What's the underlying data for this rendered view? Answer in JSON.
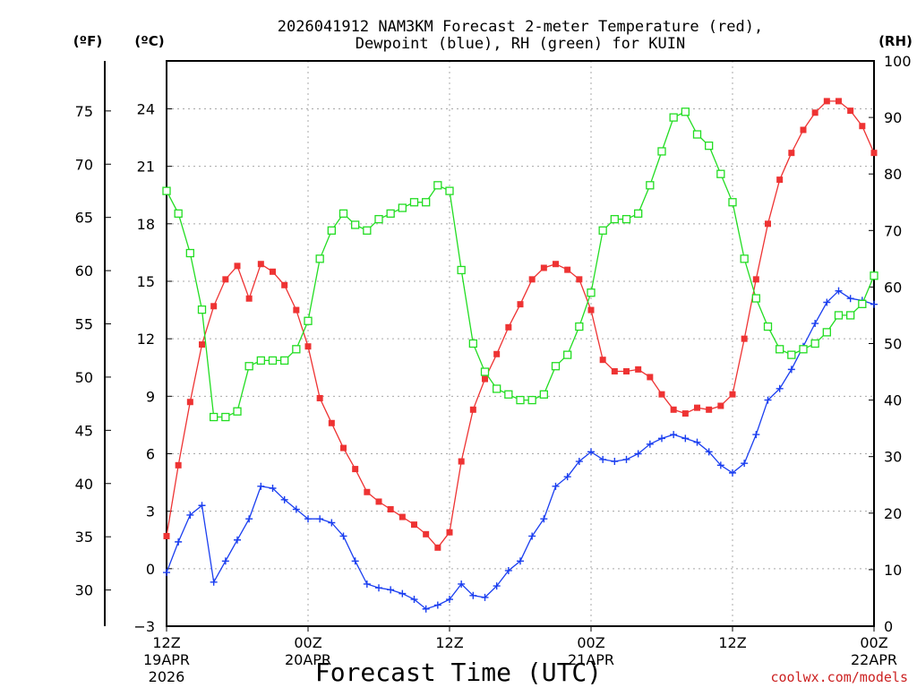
{
  "chart_data": {
    "type": "line",
    "title_line1": "2026041912 NAM3KM Forecast 2-meter Temperature (red),",
    "title_line2": "Dewpoint (blue), RH (green) for KUIN",
    "xlabel": "Forecast Time (UTC)",
    "watermark": "coolwx.com/models",
    "unit_f": "(ºF)",
    "unit_c": "(ºC)",
    "unit_rh": "(RH)",
    "x_range_hours": [
      0,
      60
    ],
    "ylim_c": [
      -3,
      26.5
    ],
    "ylim_f": [
      26.6,
      79.7
    ],
    "ylim_rh": [
      0,
      100
    ],
    "c_ticks": [
      "24",
      "21",
      "18",
      "15",
      "12",
      "9",
      "6",
      "3",
      "0",
      "−3"
    ],
    "f_ticks": [
      "75",
      "70",
      "65",
      "60",
      "55",
      "50",
      "45",
      "40",
      "35",
      "30"
    ],
    "rh_ticks": [
      "100",
      "90",
      "80",
      "70",
      "60",
      "50",
      "40",
      "30",
      "20",
      "10",
      "0"
    ],
    "x_ticks": [
      {
        "hour": 0,
        "line1": "12Z",
        "line2": "19APR",
        "line3": "2026"
      },
      {
        "hour": 12,
        "line1": "00Z",
        "line2": "20APR",
        "line3": ""
      },
      {
        "hour": 24,
        "line1": "12Z",
        "line2": "",
        "line3": ""
      },
      {
        "hour": 36,
        "line1": "00Z",
        "line2": "21APR",
        "line3": ""
      },
      {
        "hour": 48,
        "line1": "12Z",
        "line2": "",
        "line3": ""
      },
      {
        "hour": 60,
        "line1": "00Z",
        "line2": "22APR",
        "line3": ""
      }
    ],
    "series": [
      {
        "name": "2-meter Temperature",
        "color": "#ee3333",
        "axis": "celsius",
        "marker": "filled-square",
        "values": [
          1.7,
          5.4,
          8.7,
          11.7,
          13.7,
          15.1,
          15.8,
          14.1,
          15.9,
          15.5,
          14.8,
          13.5,
          11.6,
          8.9,
          7.6,
          6.3,
          5.2,
          4.0,
          3.5,
          3.1,
          2.7,
          2.3,
          1.8,
          1.1,
          1.9,
          5.6,
          8.3,
          9.9,
          11.2,
          12.6,
          13.8,
          15.1,
          15.7,
          15.9,
          15.6,
          15.1,
          13.5,
          10.9,
          10.3,
          10.3,
          10.4,
          10.0,
          9.1,
          8.3,
          8.1,
          8.4,
          8.3,
          8.5,
          9.1,
          12.0,
          15.1,
          18.0,
          20.3,
          21.7,
          22.9,
          23.8,
          24.4,
          24.4,
          23.9,
          23.1,
          21.7
        ]
      },
      {
        "name": "Dewpoint",
        "color": "#1a3ef0",
        "axis": "celsius",
        "marker": "plus",
        "values": [
          -0.2,
          1.4,
          2.8,
          3.3,
          -0.7,
          0.4,
          1.5,
          2.6,
          4.3,
          4.2,
          3.6,
          3.1,
          2.6,
          2.6,
          2.4,
          1.7,
          0.4,
          -0.8,
          -1.0,
          -1.1,
          -1.3,
          -1.6,
          -2.1,
          -1.9,
          -1.6,
          -0.8,
          -1.4,
          -1.5,
          -0.9,
          -0.1,
          0.4,
          1.7,
          2.6,
          4.3,
          4.8,
          5.6,
          6.1,
          5.7,
          5.6,
          5.7,
          6.0,
          6.5,
          6.8,
          7.0,
          6.8,
          6.6,
          6.1,
          5.4,
          5.0,
          5.5,
          7.0,
          8.8,
          9.4,
          10.4,
          11.6,
          12.8,
          13.9,
          14.5,
          14.1,
          14.0,
          13.8
        ]
      },
      {
        "name": "RH",
        "color": "#22dd22",
        "axis": "rh",
        "marker": "open-square",
        "values": [
          77,
          73,
          66,
          56,
          37,
          37,
          38,
          46,
          47,
          47,
          47,
          49,
          54,
          65,
          70,
          73,
          71,
          70,
          72,
          73,
          74,
          75,
          75,
          78,
          77,
          63,
          50,
          45,
          42,
          41,
          40,
          40,
          41,
          46,
          48,
          53,
          59,
          70,
          72,
          72,
          73,
          78,
          84,
          90,
          91,
          87,
          85,
          80,
          75,
          65,
          58,
          53,
          49,
          48,
          49,
          50,
          52,
          55,
          55,
          57,
          62
        ]
      }
    ]
  }
}
